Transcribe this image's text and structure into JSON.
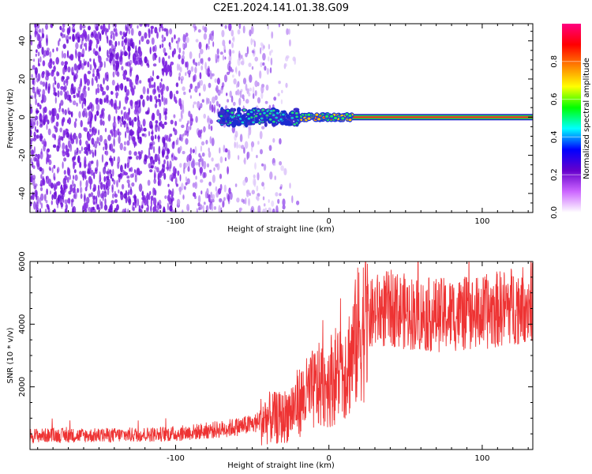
{
  "title": "C2E1.2024.141.01.38.G09",
  "chart_data": [
    {
      "type": "heatmap",
      "name": "spectrogram",
      "xlabel": "Height of straight line (km)",
      "ylabel": "Frequency (Hz)",
      "xlim": [
        -195,
        133
      ],
      "ylim": [
        -50,
        49
      ],
      "x_ticks": [
        -100,
        0,
        100
      ],
      "y_ticks": [
        -40,
        -20,
        0,
        20,
        40
      ],
      "noise_region_x": [
        -195,
        -20
      ],
      "signal": [
        {
          "x_from": -72,
          "x_to": -20,
          "freq": 0,
          "spread": 4,
          "amplitude": 0.4
        },
        {
          "x_from": -20,
          "x_to": 15,
          "freq": 0,
          "spread": 2,
          "amplitude": 0.85
        },
        {
          "x_from": 15,
          "x_to": 133,
          "freq": 0,
          "spread": 1,
          "amplitude": 1.0
        }
      ],
      "colorbar": {
        "label": "Normalized spectral amplitude",
        "range": [
          0,
          1
        ],
        "ticks": [
          "0.0",
          "0.2",
          "0.4",
          "0.6",
          "0.8"
        ],
        "stops": [
          "#ffffff",
          "#cc66ff",
          "#6600cc",
          "#0000ff",
          "#00ffff",
          "#00ff00",
          "#ffff00",
          "#ff8000",
          "#ff0000",
          "#ff0080"
        ]
      }
    },
    {
      "type": "line",
      "name": "snr",
      "xlabel": "Height of straight line (km)",
      "ylabel": "SNR (10 * v/v)",
      "xlim": [
        -195,
        133
      ],
      "ylim": [
        0,
        6000
      ],
      "x_ticks": [
        -100,
        0,
        100
      ],
      "y_ticks": [
        2000,
        4000,
        6000
      ],
      "color": "#ee3333",
      "trend": [
        {
          "x": -195,
          "y": 450
        },
        {
          "x": -150,
          "y": 450
        },
        {
          "x": -100,
          "y": 500
        },
        {
          "x": -70,
          "y": 650
        },
        {
          "x": -50,
          "y": 800
        },
        {
          "x": -40,
          "y": 1000
        },
        {
          "x": -30,
          "y": 1000
        },
        {
          "x": -20,
          "y": 1500
        },
        {
          "x": -10,
          "y": 1900
        },
        {
          "x": 0,
          "y": 2200
        },
        {
          "x": 10,
          "y": 2600
        },
        {
          "x": 15,
          "y": 3000
        },
        {
          "x": 20,
          "y": 3800
        },
        {
          "x": 30,
          "y": 4400
        },
        {
          "x": 40,
          "y": 4500
        },
        {
          "x": 60,
          "y": 4300
        },
        {
          "x": 80,
          "y": 4300
        },
        {
          "x": 100,
          "y": 4350
        },
        {
          "x": 120,
          "y": 4600
        },
        {
          "x": 133,
          "y": 4700
        }
      ]
    }
  ]
}
